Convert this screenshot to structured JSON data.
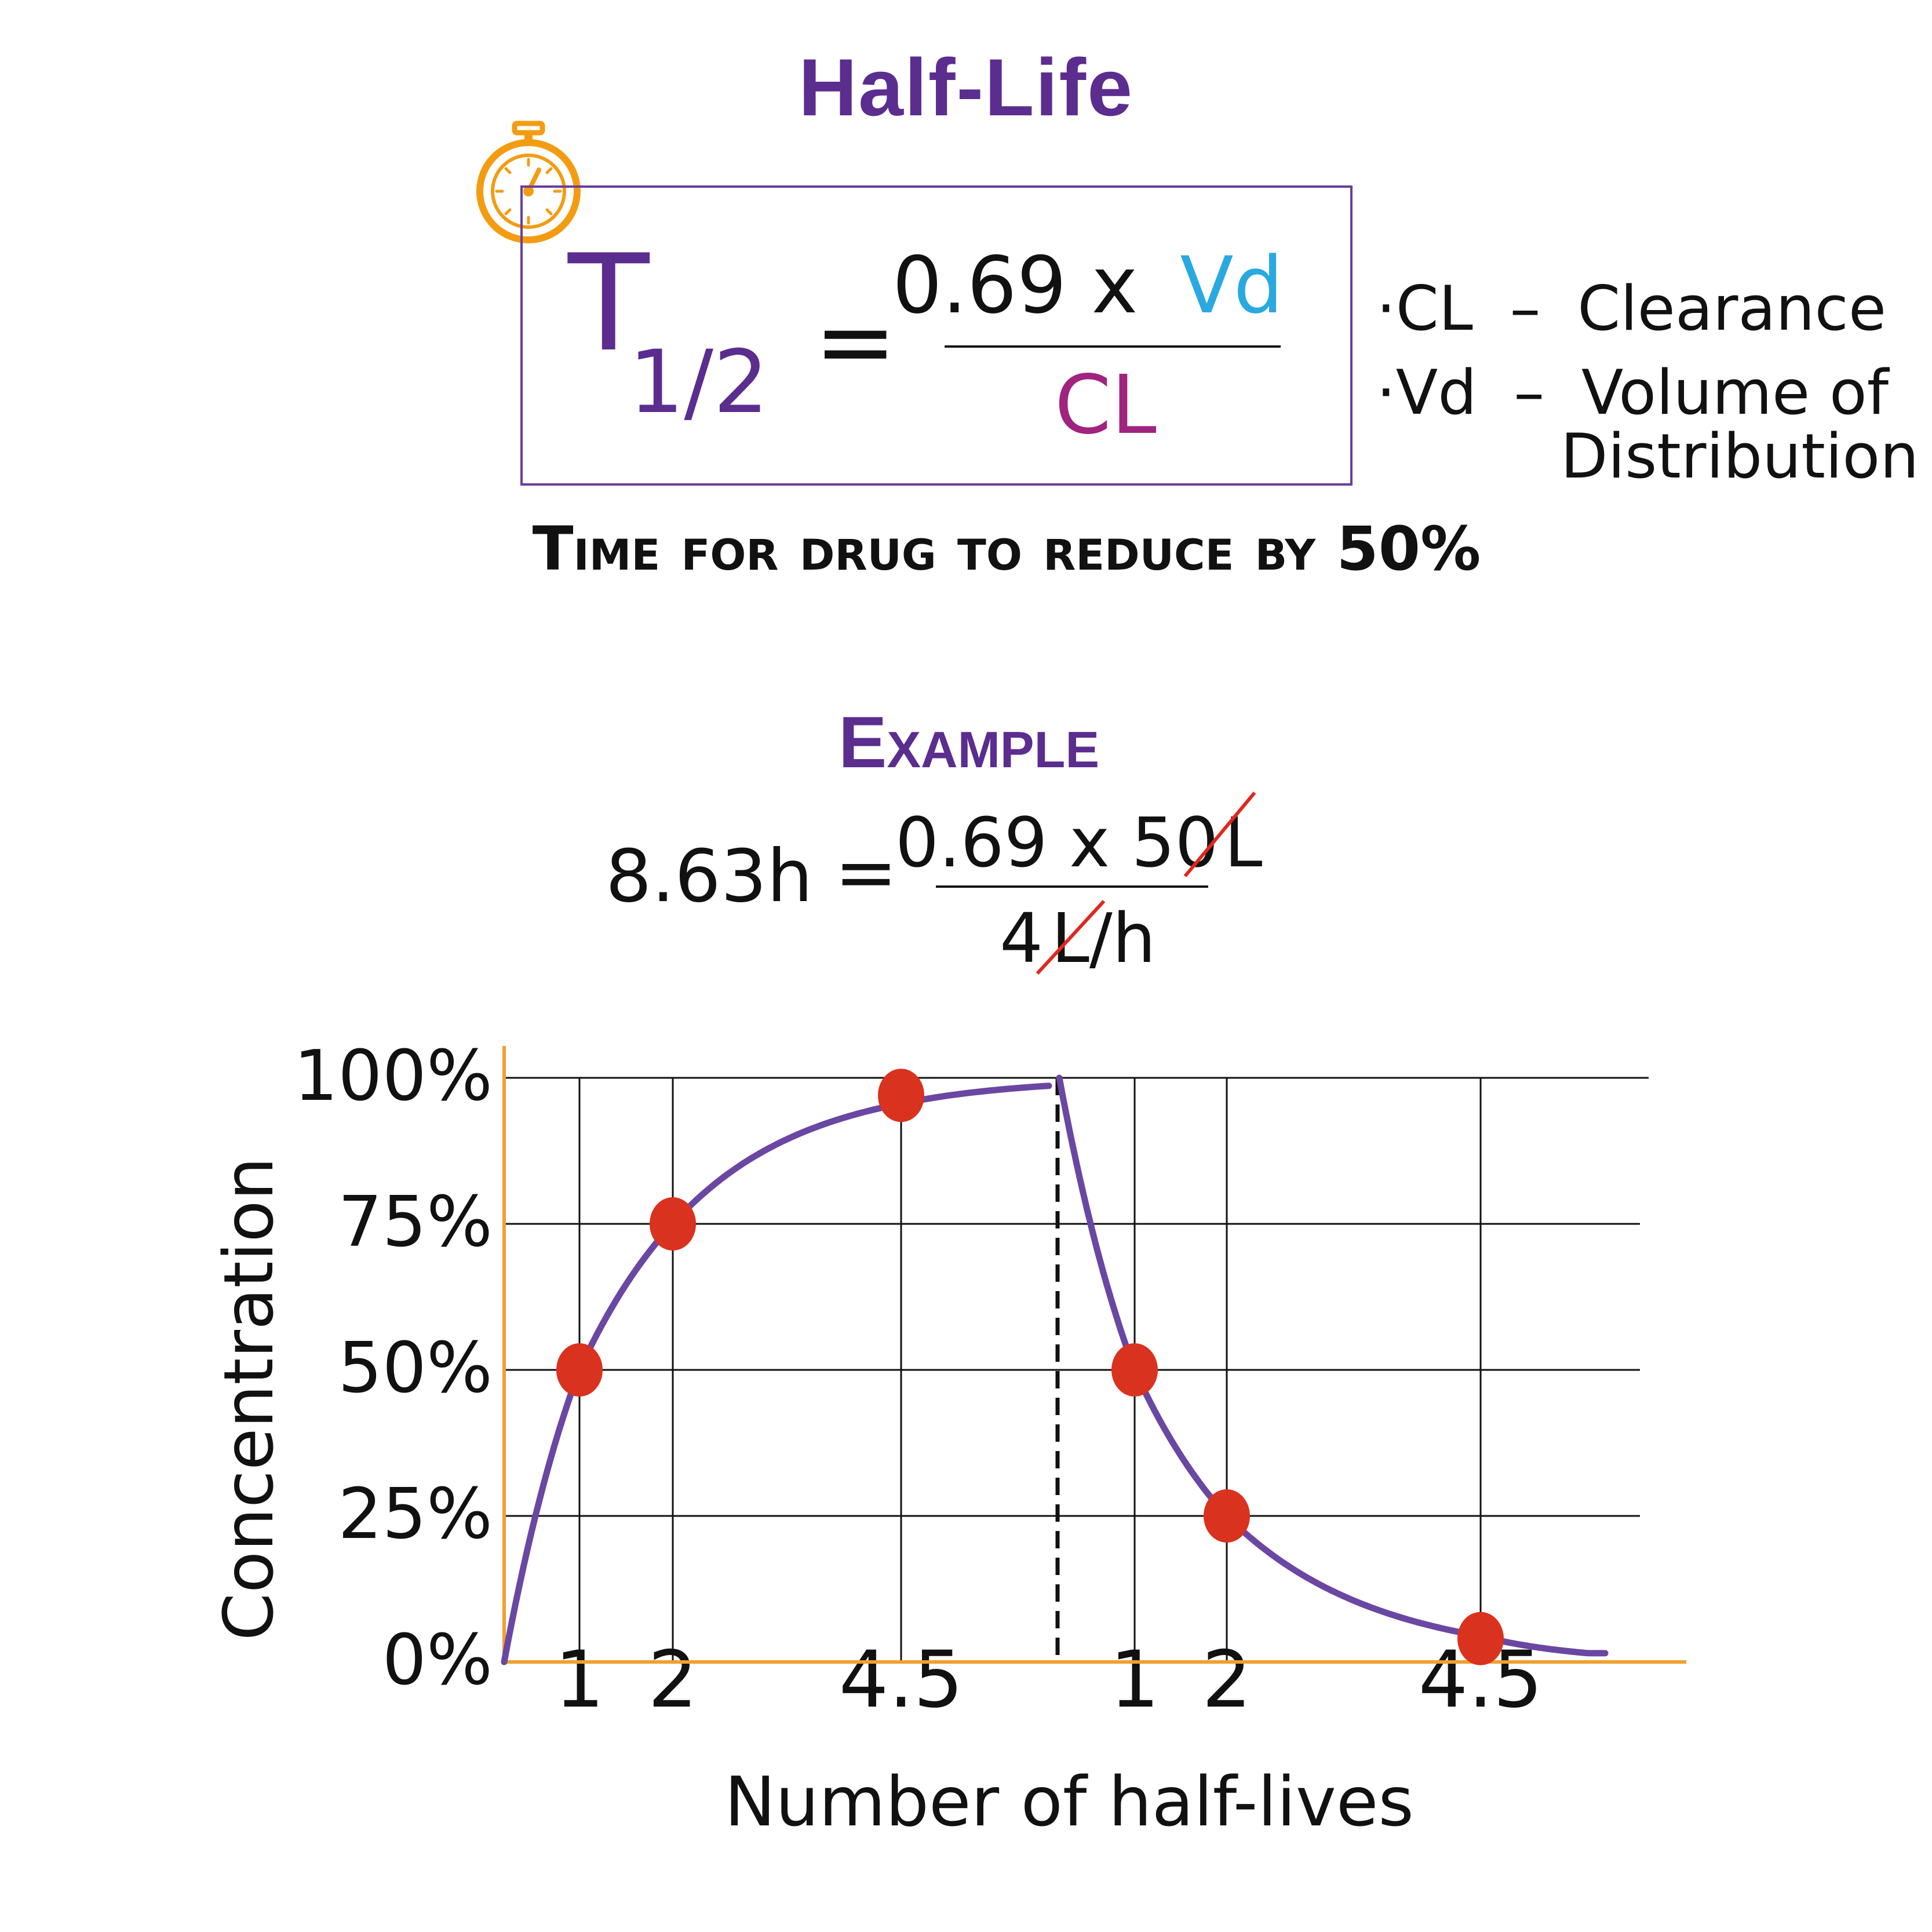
{
  "header": {
    "title": "Half-Life",
    "colors": {
      "title": "#5b2d8e",
      "box_border": "#6a3d9a",
      "stopwatch": "#f39c12"
    }
  },
  "formula": {
    "lhs_symbol": "T",
    "lhs_subscript": "1/2",
    "equals": "=",
    "numerator_prefix": "0.69 x",
    "numerator_var": "Vd",
    "denominator": "CL",
    "colors": {
      "lhs": "#5b2d8e",
      "vd": "#29a9e0",
      "cl": "#a0237f"
    }
  },
  "legend_notes": {
    "items": [
      {
        "bullet": "·",
        "abbr": "CL",
        "dash": "–",
        "meaning": "Clearance"
      },
      {
        "bullet": "·",
        "abbr": "Vd",
        "dash": "–",
        "meaning": "Volume of"
      }
    ],
    "continuation": "Distribution"
  },
  "caption": "Time for drug to reduce by 50%",
  "example": {
    "title": "Example",
    "result": "8.63h",
    "equals": "=",
    "numerator_value": "0.69 x 50",
    "numerator_unit": "L",
    "denominator_value": "4",
    "denominator_unit": "L",
    "denominator_suffix": "/h",
    "strike_color": "#e0281c"
  },
  "chart_data": {
    "type": "line",
    "ylabel": "Concentration",
    "xlabel": "Number of half-lives",
    "y_ticks": [
      "0%",
      "25%",
      "50%",
      "75%",
      "100%"
    ],
    "ylim": [
      0,
      100
    ],
    "grid": true,
    "phases": [
      {
        "phase": "absorption",
        "x_ticks": [
          "1",
          "2",
          "4.5"
        ],
        "points": [
          {
            "x": 1,
            "y": 50
          },
          {
            "x": 2,
            "y": 75
          },
          {
            "x": 4.5,
            "y": 97
          }
        ]
      },
      {
        "phase": "elimination",
        "x_ticks": [
          "1",
          "2",
          "4.5"
        ],
        "points": [
          {
            "x": 1,
            "y": 50
          },
          {
            "x": 2,
            "y": 25
          },
          {
            "x": 4.5,
            "y": 4
          }
        ]
      }
    ],
    "colors": {
      "curve": "#6a47a3",
      "points": "#d9321f",
      "axes": "#f0a030",
      "grid": "#111111"
    }
  }
}
